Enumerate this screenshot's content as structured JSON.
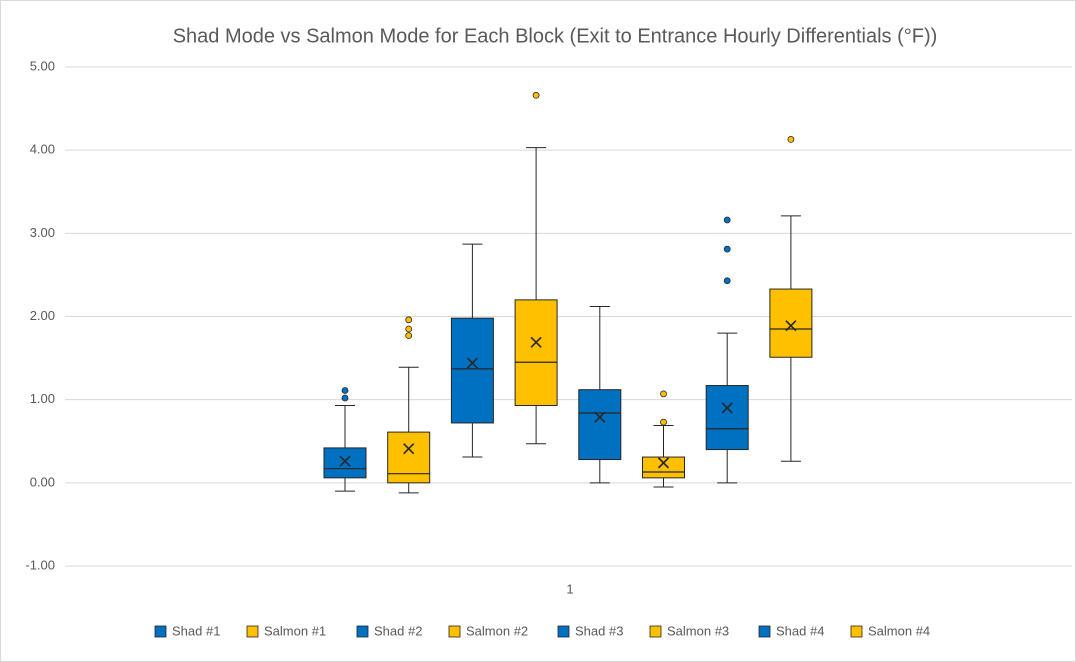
{
  "chart_data": {
    "type": "box",
    "title": "Shad Mode vs Salmon Mode for Each Block (Exit to Entrance Hourly Differentials (°F))",
    "categories": [
      "1"
    ],
    "ylim": [
      -1,
      5
    ],
    "yticks": [
      {
        "value": -1,
        "label": "-1.00"
      },
      {
        "value": 0,
        "label": "0.00"
      },
      {
        "value": 1,
        "label": "1.00"
      },
      {
        "value": 2,
        "label": "2.00"
      },
      {
        "value": 3,
        "label": "3.00"
      },
      {
        "value": 4,
        "label": "4.00"
      },
      {
        "value": 5,
        "label": "5.00"
      }
    ],
    "grid": true,
    "legend": "bottom",
    "series": [
      {
        "name": "Shad #1",
        "color": "#0070c0",
        "whisker_low": -0.1,
        "q1": 0.06,
        "median": 0.17,
        "q3": 0.42,
        "whisker_high": 0.93,
        "mean": 0.26,
        "outliers": [
          1.02,
          1.11
        ]
      },
      {
        "name": "Salmon #1",
        "color": "#ffc000",
        "whisker_low": -0.12,
        "q1": 0.0,
        "median": 0.11,
        "q3": 0.61,
        "whisker_high": 1.39,
        "mean": 0.41,
        "outliers": [
          1.77,
          1.85,
          1.96
        ]
      },
      {
        "name": "Shad #2",
        "color": "#0070c0",
        "whisker_low": 0.31,
        "q1": 0.72,
        "median": 1.37,
        "q3": 1.98,
        "whisker_high": 2.87,
        "mean": 1.44,
        "outliers": []
      },
      {
        "name": "Salmon #2",
        "color": "#ffc000",
        "whisker_low": 0.47,
        "q1": 0.93,
        "median": 1.45,
        "q3": 2.2,
        "whisker_high": 4.03,
        "mean": 1.69,
        "outliers": [
          4.66
        ]
      },
      {
        "name": "Shad #3",
        "color": "#0070c0",
        "whisker_low": 0.0,
        "q1": 0.28,
        "median": 0.84,
        "q3": 1.12,
        "whisker_high": 2.12,
        "mean": 0.79,
        "outliers": []
      },
      {
        "name": "Salmon #3",
        "color": "#ffc000",
        "whisker_low": -0.05,
        "q1": 0.06,
        "median": 0.13,
        "q3": 0.31,
        "whisker_high": 0.69,
        "mean": 0.24,
        "outliers": [
          0.73,
          1.07
        ]
      },
      {
        "name": "Shad #4",
        "color": "#0070c0",
        "whisker_low": 0.0,
        "q1": 0.4,
        "median": 0.65,
        "q3": 1.17,
        "whisker_high": 1.8,
        "mean": 0.9,
        "outliers": [
          2.43,
          2.81,
          3.16
        ]
      },
      {
        "name": "Salmon #4",
        "color": "#ffc000",
        "whisker_low": 0.26,
        "q1": 1.51,
        "median": 1.85,
        "q3": 2.33,
        "whisker_high": 3.21,
        "mean": 1.89,
        "outliers": [
          4.13
        ]
      }
    ]
  }
}
